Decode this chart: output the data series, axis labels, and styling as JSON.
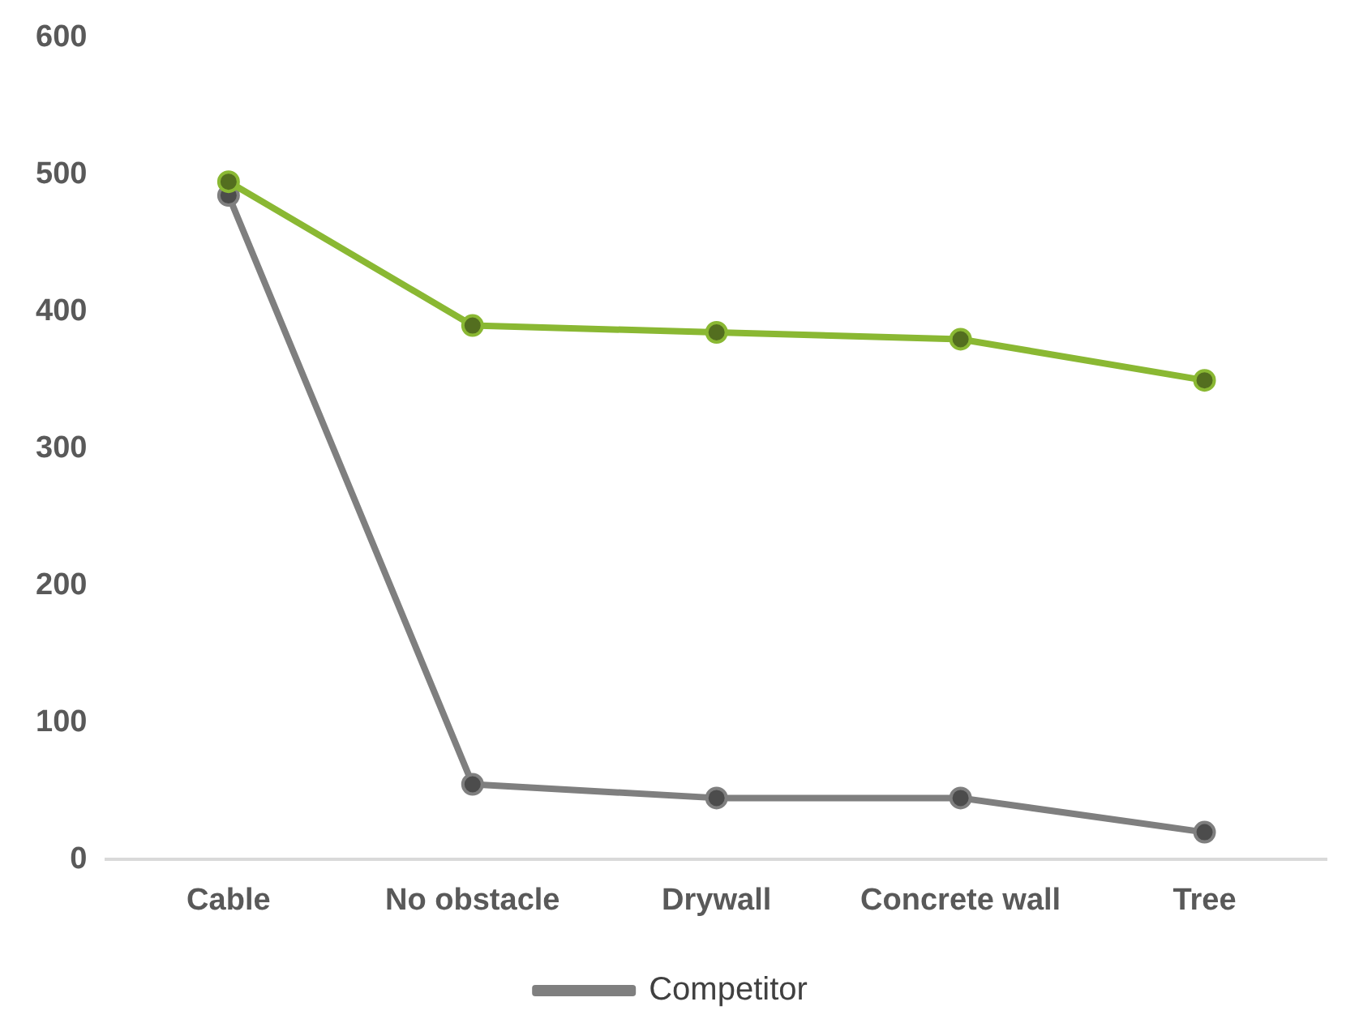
{
  "chart_data": {
    "type": "line",
    "categories": [
      "Cable",
      "No obstacle",
      "Drywall",
      "Concrete wall",
      "Tree"
    ],
    "series": [
      {
        "color": "#8ab833",
        "values": [
          495,
          390,
          385,
          380,
          350
        ]
      },
      {
        "name": "Competitor",
        "color": "#7f7f7f",
        "values": [
          485,
          55,
          45,
          45,
          20
        ]
      }
    ],
    "ylim": [
      0,
      600
    ],
    "yticks": [
      0,
      100,
      200,
      300,
      400,
      500,
      600
    ],
    "grid": false,
    "legend": "bottom",
    "marker": "circle",
    "line_style": "solid"
  }
}
